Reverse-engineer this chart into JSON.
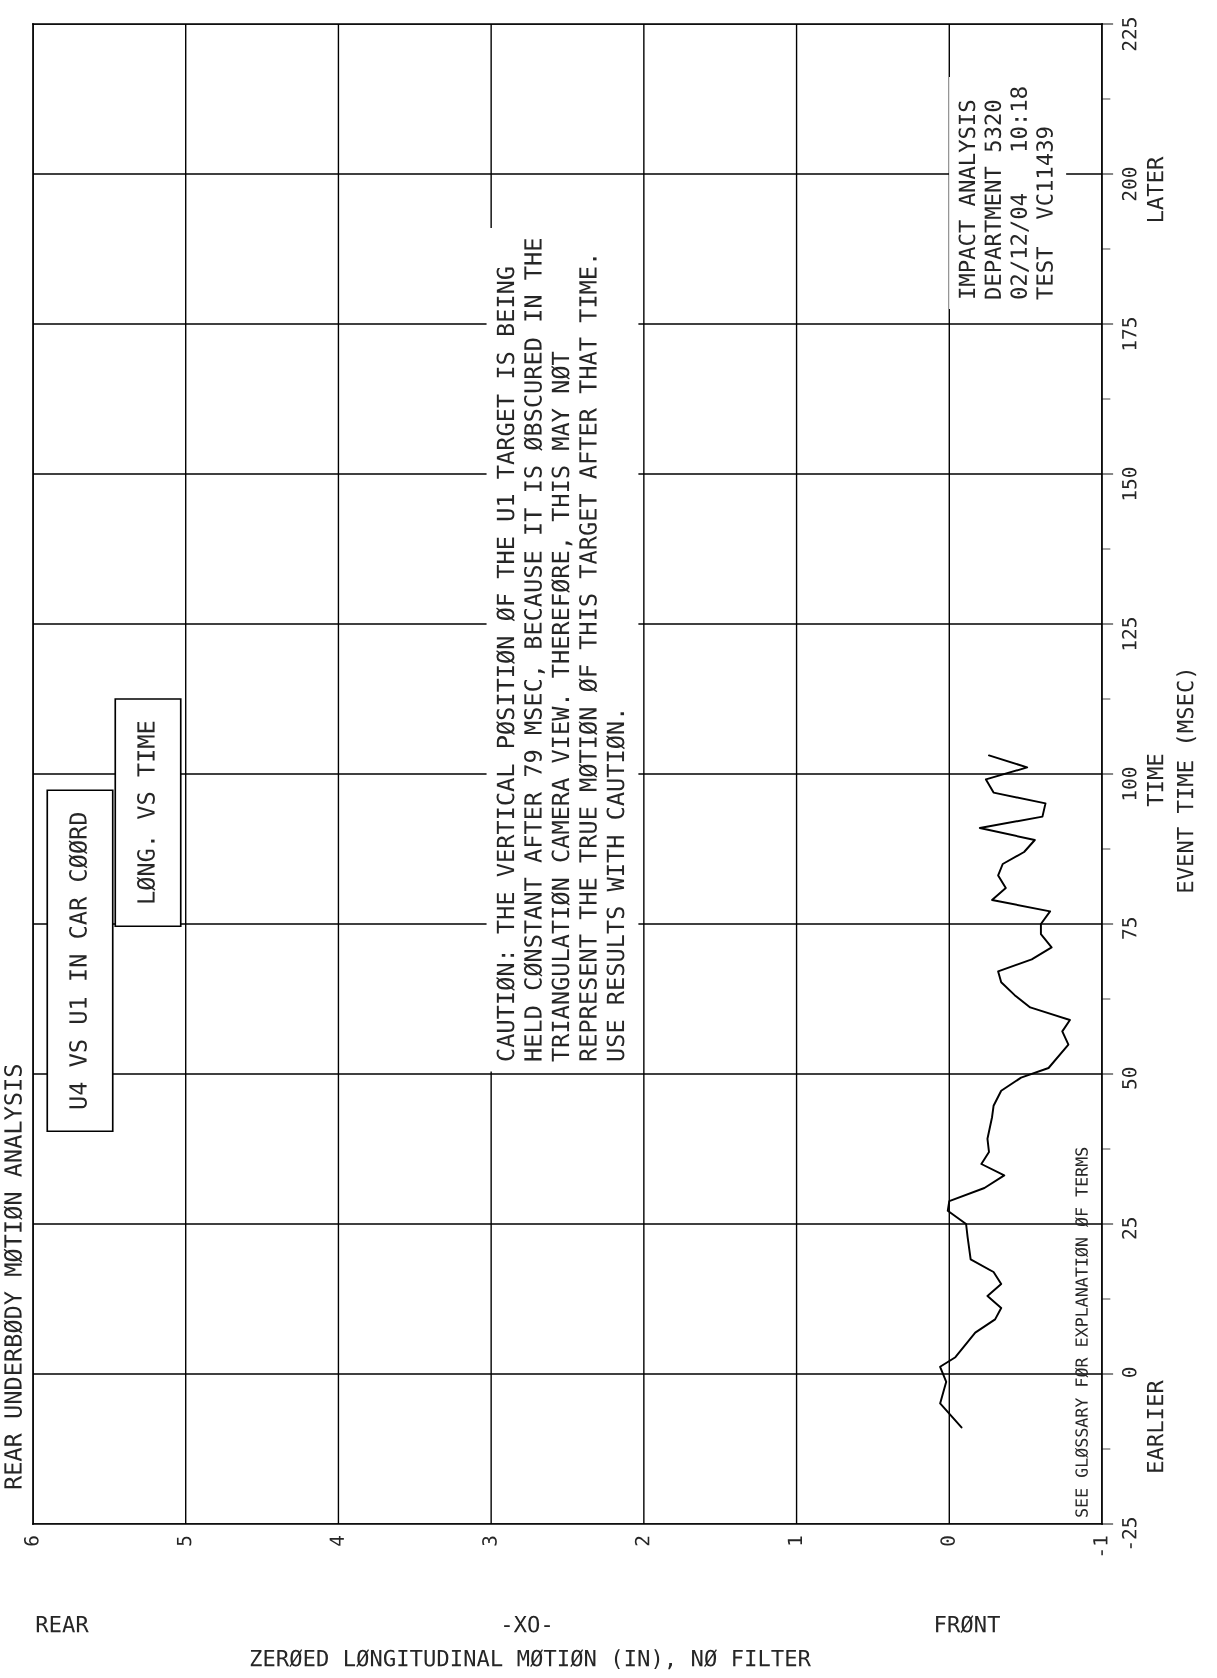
{
  "chart_data": {
    "type": "line",
    "title": "REAR UNDERBØDY MØTIØN ANALYSIS",
    "xlabel": "ZERØED LØNGITUDINAL MØTIØN (IN), NØ FILTER",
    "ylabel": "EVENT TIME (MSEC)",
    "x": [
      -0.08,
      0.06,
      0.02,
      0.06,
      -0.04,
      -0.17,
      -0.3,
      -0.34,
      -0.25,
      -0.34,
      -0.29,
      -0.14,
      -0.12,
      -0.11,
      0.01,
      0.0,
      -0.23,
      -0.36,
      -0.21,
      -0.26,
      -0.25,
      -0.28,
      -0.29,
      -0.34,
      -0.47,
      -0.65,
      -0.78,
      -0.74,
      -0.79,
      -0.53,
      -0.43,
      -0.34,
      -0.32,
      -0.54,
      -0.67,
      -0.6,
      -0.6,
      -0.66,
      -0.28,
      -0.37,
      -0.32,
      -0.35,
      -0.49,
      -0.56,
      -0.2,
      -0.61,
      -0.63,
      -0.29,
      -0.24,
      -0.51,
      -0.26
    ],
    "values": [
      -8.9,
      -4.9,
      -1.3,
      1.2,
      2.8,
      6.9,
      9.1,
      11.0,
      13.0,
      15.0,
      17.0,
      19.1,
      22.8,
      25.0,
      27.2,
      28.8,
      31.0,
      33.1,
      35.0,
      37.0,
      39.2,
      42.8,
      44.7,
      47.2,
      49.4,
      51.0,
      54.9,
      57.1,
      59.0,
      61.1,
      63.1,
      65.3,
      67.1,
      69.1,
      71.1,
      73.3,
      75.0,
      77.1,
      79.0,
      81.0,
      83.1,
      85.0,
      87.0,
      89.0,
      91.0,
      92.9,
      95.1,
      96.9,
      99.1,
      101.1,
      103.1
    ],
    "color": "#000000",
    "xlim": [
      6,
      -1
    ],
    "xticks": [
      6,
      5,
      4,
      3,
      2,
      1,
      0,
      -1
    ],
    "ylim": [
      -25,
      225
    ],
    "yticks": [
      -25,
      0,
      25,
      50,
      75,
      100,
      125,
      150,
      175,
      200,
      225
    ],
    "grid": true,
    "marker": "none",
    "line_style": "solid",
    "annotations": [
      "U4 VS U1 IN CAR CØØRD",
      "LØNG. VS TIME",
      "CAUTIØN: THE VERTICAL PØSITIØN ØF THE U1 TARGET IS BEING\nHELD CØNSTANT AFTER 79 MSEC, BECAUSE IT IS ØBSCURED IN THE\nTRIANGULATIØN CAMERA VIEW. THEREFØRE, THIS MAY NØT\nREPRESENT THE TRUE MØTIØN ØF THIS TARGET AFTER THAT TIME.\nUSE RESULTS WITH CAUTIØN.",
      "IMPACT ANALYSIS\nDEPARTMENT 5320\n02/12/04   10:18\nTEST  VC11439",
      "SEE GLØSSARY FØR EXPLANATIØN ØF TERMS",
      "TIME",
      "EARLIER",
      "LATER",
      "REAR",
      "-XO-",
      "FRØNT"
    ]
  }
}
